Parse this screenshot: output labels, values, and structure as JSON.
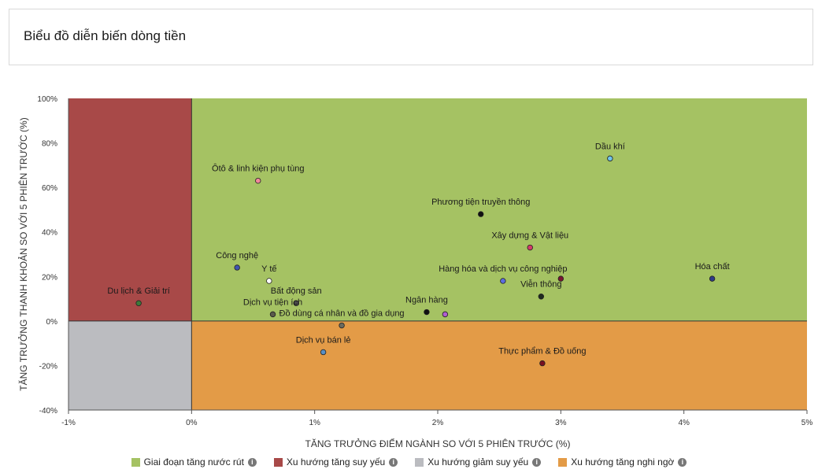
{
  "page": {
    "title": "Biểu đồ diễn biến dòng tiền"
  },
  "colors": {
    "green": "#a5c263",
    "red": "#a84948",
    "gray": "#bbbcc0",
    "orange": "#e39b47"
  },
  "legend": [
    {
      "label": "Giai đoạn tăng nước rút",
      "color": "#a5c263"
    },
    {
      "label": "Xu hướng tăng suy yếu",
      "color": "#a84948"
    },
    {
      "label": "Xu hướng giảm suy yếu",
      "color": "#bbbcc0"
    },
    {
      "label": "Xu hướng tăng nghi ngờ",
      "color": "#e39b47"
    }
  ],
  "chart_data": {
    "type": "scatter",
    "xlabel": "TĂNG TRƯỞNG ĐIỂM NGÀNH SO VỚI 5 PHIÊN TRƯỚC (%)",
    "ylabel": "TĂNG TRƯỞNG THANH KHOẢN SO VỚI 5 PHIÊN TRƯỚC (%)",
    "xlim": [
      -1,
      5
    ],
    "ylim": [
      -40,
      100
    ],
    "xticks": [
      -1,
      0,
      1,
      2,
      3,
      4,
      5
    ],
    "xtick_labels": [
      "-1%",
      "0%",
      "1%",
      "2%",
      "3%",
      "4%",
      "5%"
    ],
    "yticks": [
      -40,
      -20,
      0,
      20,
      40,
      60,
      80,
      100
    ],
    "ytick_labels": [
      "-40%",
      "-20%",
      "0%",
      "20%",
      "40%",
      "60%",
      "80%",
      "100%"
    ],
    "points": [
      {
        "label": "Dầu khí",
        "x": 3.4,
        "y": 73,
        "color": "#6fc3ea"
      },
      {
        "label": "Ôtô & linh kiện phụ tùng",
        "x": 0.54,
        "y": 63,
        "color": "#f2879b"
      },
      {
        "label": "Phương tiện truyền thông",
        "x": 2.35,
        "y": 48,
        "color": "#111111"
      },
      {
        "label": "Xây dựng & Vật liệu",
        "x": 2.75,
        "y": 33,
        "color": "#d43b6b"
      },
      {
        "label": "Công nghệ",
        "x": 0.37,
        "y": 24,
        "color": "#3f55b0"
      },
      {
        "label": "Y tế",
        "x": 0.63,
        "y": 18,
        "color": "#ffffff"
      },
      {
        "label": "Hàng hóa và dịch vụ công nghiệp",
        "x": 2.53,
        "y": 18,
        "color": "#5b6de0"
      },
      {
        "label": "",
        "x": 3.0,
        "y": 19,
        "color": "#7a1430"
      },
      {
        "label": "Hóa chất",
        "x": 4.23,
        "y": 19,
        "color": "#2e3a88"
      },
      {
        "label": "Viễn thông",
        "x": 2.84,
        "y": 11,
        "color": "#1f2a1f"
      },
      {
        "label": "Du lịch & Giải trí",
        "x": -0.43,
        "y": 8,
        "color": "#3d7a3a"
      },
      {
        "label": "Bất động sản",
        "x": 0.85,
        "y": 8,
        "color": "#4a4a4a"
      },
      {
        "label": "Ngân hàng",
        "x": 1.91,
        "y": 4,
        "color": "#111111"
      },
      {
        "label": "",
        "x": 2.06,
        "y": 3,
        "color": "#b05dd0"
      },
      {
        "label": "Dịch vụ tiện ích",
        "x": 0.66,
        "y": 3,
        "color": "#5a5a4a"
      },
      {
        "label": "Đồ dùng cá nhân và đồ gia dụng",
        "x": 1.22,
        "y": -2,
        "color": "#6b6b60"
      },
      {
        "label": "Dịch vụ bán lẻ",
        "x": 1.07,
        "y": -14,
        "color": "#5a8fc4"
      },
      {
        "label": "Thực phẩm & Đồ uống",
        "x": 2.85,
        "y": -19,
        "color": "#7a1020"
      }
    ]
  }
}
